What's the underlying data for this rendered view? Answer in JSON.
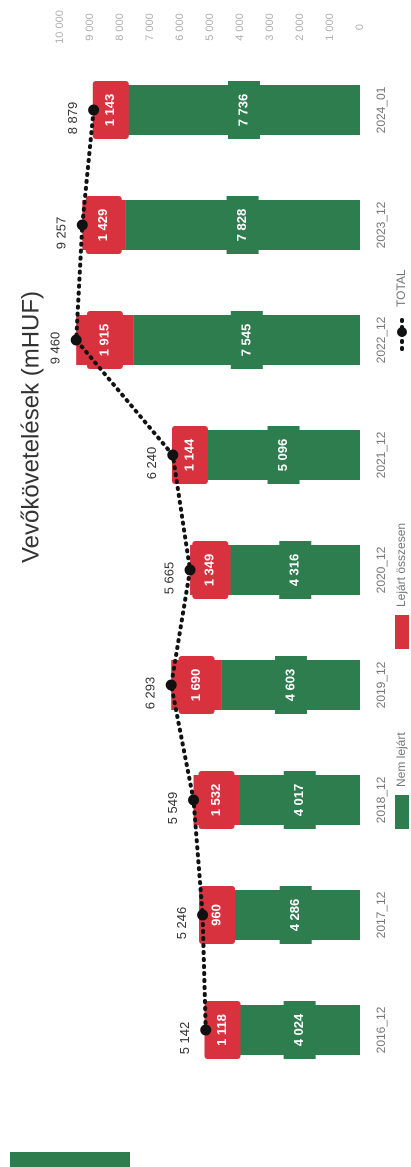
{
  "chart_data": {
    "type": "bar",
    "title": "Vevőkövetelések (mHUF)",
    "categories": [
      "2016_12",
      "2017_12",
      "2018_12",
      "2019_12",
      "2020_12",
      "2021_12",
      "2022_12",
      "2023_12",
      "2024_01"
    ],
    "series": [
      {
        "name": "Nem lejárt",
        "color": "#2e7d4f",
        "values": [
          4024,
          4286,
          4017,
          4603,
          4316,
          5096,
          7545,
          7828,
          7736
        ],
        "value_labels": [
          "4 024",
          "4 286",
          "4 017",
          "4 603",
          "4 316",
          "5 096",
          "7 545",
          "7 828",
          "7 736"
        ]
      },
      {
        "name": "Lejárt összesen",
        "color": "#d9323f",
        "values": [
          1118,
          960,
          1532,
          1690,
          1349,
          1144,
          1915,
          1429,
          1143
        ],
        "value_labels": [
          "1 118",
          "960",
          "1 532",
          "1 690",
          "1 349",
          "1 144",
          "1 915",
          "1 429",
          "1 143"
        ]
      },
      {
        "name": "TOTAL",
        "color": "#111111",
        "type": "line",
        "values": [
          5142,
          5246,
          5549,
          6293,
          5665,
          6240,
          9460,
          9257,
          8879
        ],
        "value_labels": [
          "5 142",
          "5 246",
          "5 549",
          "6 293",
          "5 665",
          "6 240",
          "9 460",
          "9 257",
          "8 879"
        ]
      }
    ],
    "stacked": true,
    "ylim": [
      0,
      10000
    ],
    "yticks": [
      0,
      {
        "value": 1000,
        "label": "1 000"
      },
      {
        "value": 2000,
        "label": "2 000"
      },
      {
        "value": 3000,
        "label": "3 000"
      },
      {
        "value": 4000,
        "label": "4 000"
      },
      {
        "value": 5000,
        "label": "5 000"
      },
      {
        "value": 6000,
        "label": "6 000"
      },
      {
        "value": 7000,
        "label": "7 000"
      },
      {
        "value": 8000,
        "label": "8 000"
      },
      {
        "value": 9000,
        "label": "9 000"
      },
      {
        "value": 10000,
        "label": "10 000"
      }
    ],
    "legend": "bottom"
  }
}
